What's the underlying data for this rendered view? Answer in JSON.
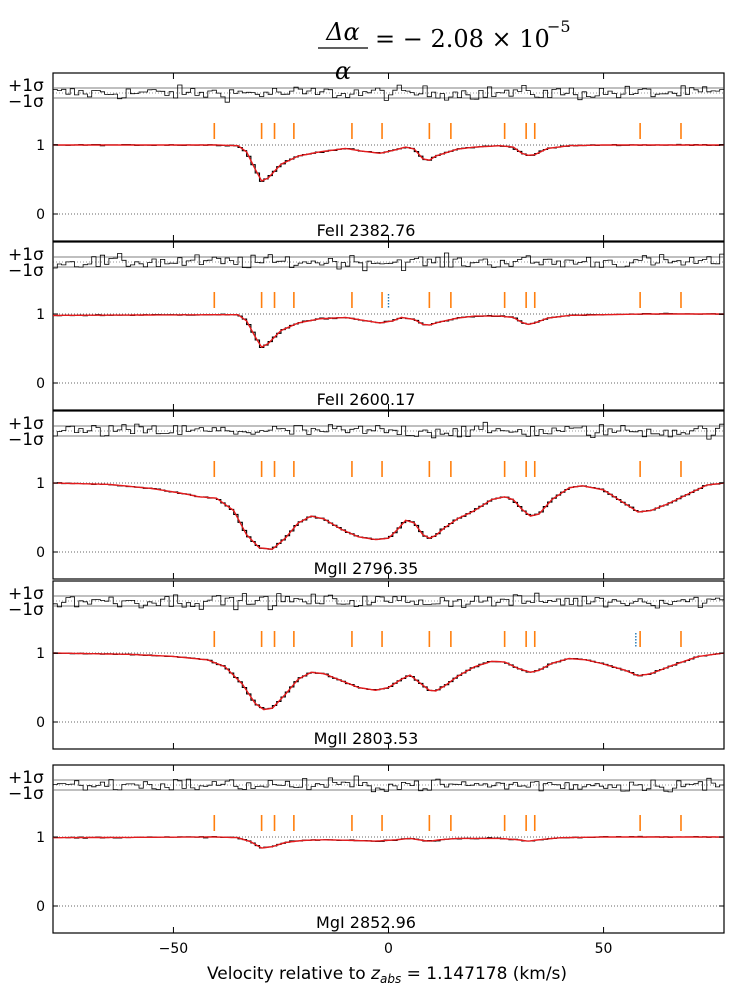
{
  "title": {
    "numerator": "Δα",
    "denominator": "α",
    "rhs": "= − 2.08 × 10",
    "exponent": "−5"
  },
  "xaxis": {
    "label_prefix": "Velocity relative to ",
    "label_var": "z",
    "label_sub": "abs",
    "label_suffix": " = 1.147178 (km/s)",
    "range": [
      -78,
      78
    ],
    "ticks": [
      -50,
      0,
      50
    ]
  },
  "residual_labels": {
    "plus": "+1σ",
    "minus": "−1σ"
  },
  "y_ticks": [
    "1",
    "0"
  ],
  "colors": {
    "model": "#e41a1c",
    "ticks": "#ff7f0e",
    "extra": "#1f77b4",
    "data": "#000000",
    "grid": "#000000"
  },
  "chart_data": {
    "type": "line",
    "xlabel": "Velocity relative to z_abs = 1.147178 (km/s)",
    "xlim": [
      -78,
      78
    ],
    "ylim": [
      -0.3,
      1.55
    ],
    "component_velocities": [
      -40.5,
      -29.5,
      -26.5,
      -22,
      -8.5,
      -1.5,
      9.5,
      14.5,
      27,
      32,
      34,
      58.5,
      68
    ],
    "panels": [
      {
        "name": "FeII 2382.76",
        "profile": [
          [
            -78,
            1.0
          ],
          [
            -40,
            1.0
          ],
          [
            -35,
            0.99
          ],
          [
            -33,
            0.9
          ],
          [
            -31,
            0.65
          ],
          [
            -29.5,
            0.48
          ],
          [
            -28,
            0.52
          ],
          [
            -25,
            0.72
          ],
          [
            -21,
            0.84
          ],
          [
            -16,
            0.9
          ],
          [
            -10,
            0.95
          ],
          [
            -6,
            0.91
          ],
          [
            -2,
            0.88
          ],
          [
            1,
            0.92
          ],
          [
            4,
            0.97
          ],
          [
            6,
            0.94
          ],
          [
            8,
            0.8
          ],
          [
            9.5,
            0.78
          ],
          [
            11,
            0.84
          ],
          [
            13,
            0.88
          ],
          [
            16,
            0.94
          ],
          [
            20,
            0.97
          ],
          [
            26,
            0.99
          ],
          [
            29,
            0.97
          ],
          [
            31,
            0.88
          ],
          [
            32.5,
            0.85
          ],
          [
            34,
            0.86
          ],
          [
            37,
            0.95
          ],
          [
            42,
            0.99
          ],
          [
            50,
            1.0
          ],
          [
            60,
            1.0
          ],
          [
            78,
            1.0
          ]
        ],
        "extra_tick": null
      },
      {
        "name": "FeII 2600.17",
        "profile": [
          [
            -78,
            0.98
          ],
          [
            -40,
            0.99
          ],
          [
            -35,
            0.99
          ],
          [
            -33,
            0.9
          ],
          [
            -31,
            0.67
          ],
          [
            -29.5,
            0.52
          ],
          [
            -28,
            0.57
          ],
          [
            -25,
            0.76
          ],
          [
            -21,
            0.87
          ],
          [
            -16,
            0.93
          ],
          [
            -10,
            0.95
          ],
          [
            -6,
            0.91
          ],
          [
            -2,
            0.87
          ],
          [
            1,
            0.9
          ],
          [
            3,
            0.95
          ],
          [
            6,
            0.92
          ],
          [
            8,
            0.85
          ],
          [
            9.5,
            0.84
          ],
          [
            11,
            0.87
          ],
          [
            13,
            0.9
          ],
          [
            16,
            0.94
          ],
          [
            20,
            0.97
          ],
          [
            26,
            0.97
          ],
          [
            29,
            0.95
          ],
          [
            31,
            0.88
          ],
          [
            32.5,
            0.85
          ],
          [
            34,
            0.87
          ],
          [
            37,
            0.94
          ],
          [
            42,
            0.98
          ],
          [
            50,
            0.99
          ],
          [
            60,
            1.0
          ],
          [
            78,
            1.0
          ]
        ],
        "extra_tick": 0
      },
      {
        "name": "MgII 2796.35",
        "profile": [
          [
            -78,
            1.0
          ],
          [
            -65,
            0.98
          ],
          [
            -55,
            0.92
          ],
          [
            -48,
            0.85
          ],
          [
            -44,
            0.8
          ],
          [
            -40,
            0.78
          ],
          [
            -36,
            0.6
          ],
          [
            -33,
            0.25
          ],
          [
            -30,
            0.06
          ],
          [
            -27,
            0.04
          ],
          [
            -24,
            0.2
          ],
          [
            -21,
            0.42
          ],
          [
            -18,
            0.52
          ],
          [
            -15,
            0.48
          ],
          [
            -11,
            0.33
          ],
          [
            -7,
            0.22
          ],
          [
            -3,
            0.18
          ],
          [
            0,
            0.2
          ],
          [
            2,
            0.32
          ],
          [
            4,
            0.46
          ],
          [
            6,
            0.42
          ],
          [
            8,
            0.25
          ],
          [
            9.5,
            0.2
          ],
          [
            11,
            0.24
          ],
          [
            13,
            0.35
          ],
          [
            16,
            0.48
          ],
          [
            20,
            0.6
          ],
          [
            24,
            0.76
          ],
          [
            27,
            0.8
          ],
          [
            29,
            0.76
          ],
          [
            31,
            0.62
          ],
          [
            33,
            0.52
          ],
          [
            35,
            0.55
          ],
          [
            38,
            0.76
          ],
          [
            42,
            0.93
          ],
          [
            45,
            0.96
          ],
          [
            50,
            0.9
          ],
          [
            55,
            0.7
          ],
          [
            58,
            0.58
          ],
          [
            61,
            0.6
          ],
          [
            65,
            0.7
          ],
          [
            70,
            0.85
          ],
          [
            74,
            0.97
          ],
          [
            78,
            1.0
          ]
        ],
        "extra_tick": null
      },
      {
        "name": "MgII 2803.53",
        "profile": [
          [
            -78,
            1.0
          ],
          [
            -60,
            0.98
          ],
          [
            -50,
            0.95
          ],
          [
            -42,
            0.9
          ],
          [
            -38,
            0.8
          ],
          [
            -34,
            0.55
          ],
          [
            -31,
            0.27
          ],
          [
            -29,
            0.18
          ],
          [
            -27,
            0.2
          ],
          [
            -24,
            0.4
          ],
          [
            -21,
            0.62
          ],
          [
            -18,
            0.72
          ],
          [
            -15,
            0.7
          ],
          [
            -11,
            0.6
          ],
          [
            -7,
            0.5
          ],
          [
            -3,
            0.46
          ],
          [
            0,
            0.5
          ],
          [
            3,
            0.62
          ],
          [
            5,
            0.68
          ],
          [
            7,
            0.58
          ],
          [
            9.5,
            0.46
          ],
          [
            11,
            0.45
          ],
          [
            13,
            0.52
          ],
          [
            16,
            0.66
          ],
          [
            20,
            0.8
          ],
          [
            24,
            0.88
          ],
          [
            27,
            0.87
          ],
          [
            30,
            0.78
          ],
          [
            33,
            0.72
          ],
          [
            35,
            0.75
          ],
          [
            38,
            0.85
          ],
          [
            42,
            0.92
          ],
          [
            46,
            0.9
          ],
          [
            50,
            0.84
          ],
          [
            55,
            0.75
          ],
          [
            58,
            0.67
          ],
          [
            61,
            0.7
          ],
          [
            66,
            0.82
          ],
          [
            72,
            0.95
          ],
          [
            78,
            1.0
          ]
        ],
        "extra_tick": 57.5
      },
      {
        "name": "MgI 2852.96",
        "profile": [
          [
            -78,
            0.99
          ],
          [
            -40,
            1.0
          ],
          [
            -35,
            0.99
          ],
          [
            -32,
            0.93
          ],
          [
            -29.5,
            0.84
          ],
          [
            -27,
            0.86
          ],
          [
            -24,
            0.92
          ],
          [
            -20,
            0.95
          ],
          [
            -15,
            0.96
          ],
          [
            -8,
            0.95
          ],
          [
            -3,
            0.94
          ],
          [
            2,
            0.96
          ],
          [
            5,
            0.98
          ],
          [
            8,
            0.95
          ],
          [
            9.5,
            0.94
          ],
          [
            12,
            0.96
          ],
          [
            16,
            0.98
          ],
          [
            26,
            0.98
          ],
          [
            30,
            0.96
          ],
          [
            32.5,
            0.94
          ],
          [
            35,
            0.96
          ],
          [
            40,
            0.99
          ],
          [
            50,
            1.0
          ],
          [
            78,
            1.0
          ]
        ],
        "extra_tick": null
      }
    ]
  }
}
